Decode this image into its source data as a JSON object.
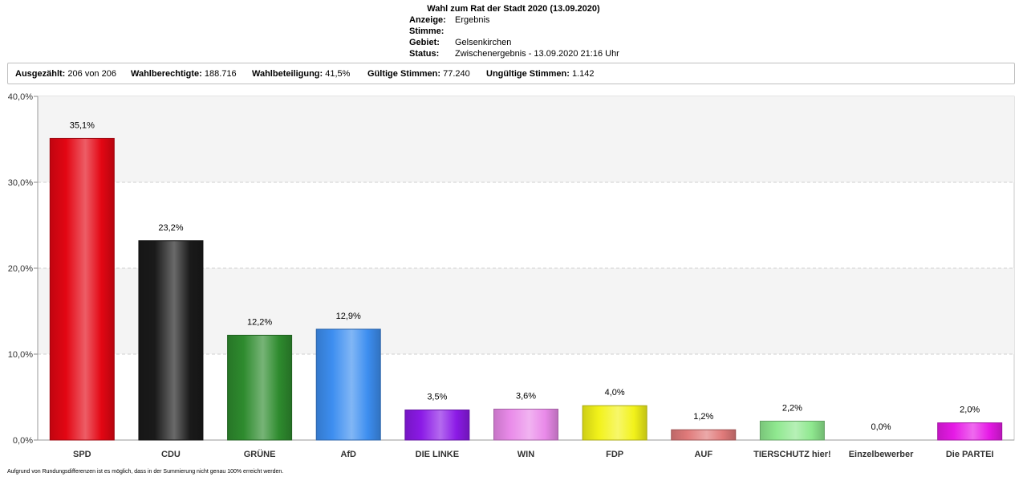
{
  "header": {
    "title": "Wahl zum Rat der Stadt 2020 (13.09.2020)",
    "meta": [
      {
        "key": "Anzeige:",
        "value": "Ergebnis"
      },
      {
        "key": "Stimme:",
        "value": ""
      },
      {
        "key": "Gebiet:",
        "value": "Gelsenkirchen"
      },
      {
        "key": "Status:",
        "value": "Zwischenergebnis - 13.09.2020 21:16 Uhr"
      }
    ]
  },
  "stats": {
    "counted_label": "Ausgezählt:",
    "counted_value": "206 von 206",
    "eligible_label": "Wahlberechtigte:",
    "eligible_value": "188.716",
    "turnout_label": "Wahlbeteiligung:",
    "turnout_value": "41,5%",
    "valid_label": "Gültige Stimmen:",
    "valid_value": "77.240",
    "invalid_label": "Ungültige Stimmen:",
    "invalid_value": "1.142"
  },
  "chart_data": {
    "type": "bar",
    "categories": [
      "SPD",
      "CDU",
      "GRÜNE",
      "AfD",
      "DIE LINKE",
      "WIN",
      "FDP",
      "AUF",
      "TIERSCHUTZ hier!",
      "Einzelbewerber",
      "Die PARTEI"
    ],
    "values": [
      35.1,
      23.2,
      12.2,
      12.9,
      3.5,
      3.6,
      4.0,
      1.2,
      2.2,
      0.0,
      2.0
    ],
    "value_labels": [
      "35,1%",
      "23,2%",
      "12,2%",
      "12,9%",
      "3,5%",
      "3,6%",
      "4,0%",
      "1,2%",
      "2,2%",
      "0,0%",
      "2,0%"
    ],
    "colors": [
      "#e30613",
      "#1a1a1a",
      "#2e8b2e",
      "#3d8ef0",
      "#8b1ae6",
      "#e98ae9",
      "#f2f21a",
      "#e07a7a",
      "#8fe88f",
      "#cccccc",
      "#e61ae6"
    ],
    "yticks": [
      0,
      10,
      20,
      30,
      40
    ],
    "ytick_labels": [
      "0,0%",
      "10,0%",
      "20,0%",
      "30,0%",
      "40,0%"
    ],
    "ylim": [
      0,
      40
    ],
    "grid": true,
    "title": "",
    "xlabel": "",
    "ylabel": ""
  },
  "footnote": "Aufgrund von Rundungsdifferenzen ist es möglich, dass in der Summierung nicht genau 100% erreicht werden."
}
